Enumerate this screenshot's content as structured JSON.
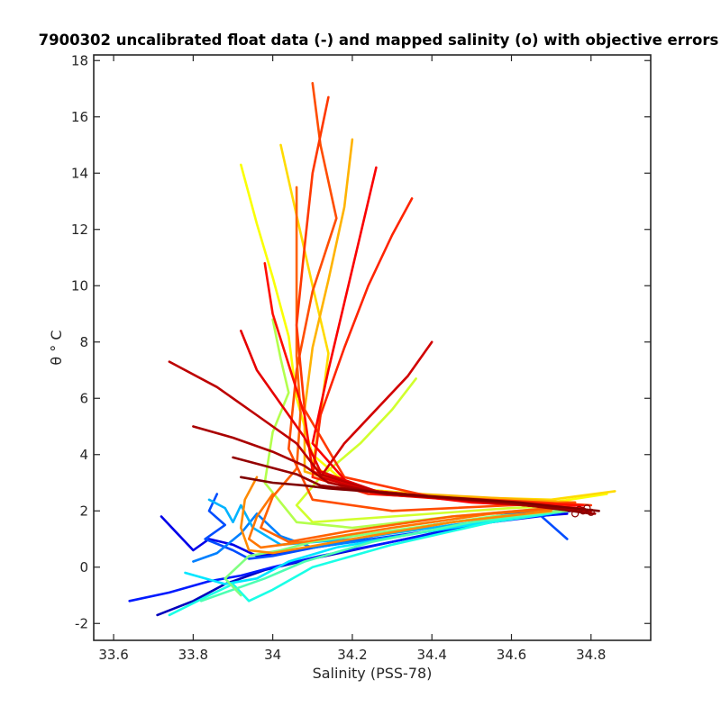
{
  "chart_data": {
    "type": "line",
    "title": "7900302 uncalibrated float data (-) and mapped salinity (o) with objective errors",
    "xlabel": "Salinity (PSS-78)",
    "ylabel": "θ ° C",
    "xlim": [
      33.55,
      34.95
    ],
    "ylim": [
      -2.6,
      18.2
    ],
    "xticks": [
      33.6,
      33.8,
      34,
      34.2,
      34.4,
      34.6,
      34.8
    ],
    "yticks": [
      -2,
      0,
      2,
      4,
      6,
      8,
      10,
      12,
      14,
      16,
      18
    ],
    "grid": false,
    "legend": "none",
    "colormap": "jet",
    "colors": [
      "#00008f",
      "#0000ff",
      "#0080ff",
      "#00ffff",
      "#80ff80",
      "#ffff00",
      "#ff8000",
      "#ff0000",
      "#800000"
    ],
    "series": [
      {
        "color_index": 0.05,
        "x": [
          33.71,
          33.8,
          33.88,
          33.98,
          34.1,
          34.3,
          34.5,
          34.68,
          34.75
        ],
        "y": [
          -1.7,
          -1.2,
          -0.6,
          -0.1,
          0.3,
          0.9,
          1.5,
          1.9,
          2.0
        ]
      },
      {
        "color_index": 0.1,
        "x": [
          33.72,
          33.76,
          33.8,
          33.84,
          33.9,
          33.96,
          34.06,
          34.2,
          34.45,
          34.65,
          34.74
        ],
        "y": [
          1.8,
          1.2,
          0.6,
          1.0,
          0.8,
          0.4,
          0.6,
          0.9,
          1.4,
          1.8,
          1.9
        ]
      },
      {
        "color_index": 0.15,
        "x": [
          33.64,
          33.74,
          33.84,
          33.92,
          34.0,
          34.12,
          34.3,
          34.55,
          34.72
        ],
        "y": [
          -1.2,
          -0.9,
          -0.5,
          -0.3,
          0.0,
          0.4,
          0.9,
          1.6,
          1.9
        ]
      },
      {
        "color_index": 0.2,
        "x": [
          33.86,
          33.84,
          33.88,
          33.83,
          33.9,
          33.94,
          34.0,
          34.14,
          34.4,
          34.66,
          34.74
        ],
        "y": [
          2.6,
          2.0,
          1.5,
          1.0,
          0.6,
          0.3,
          0.4,
          0.8,
          1.5,
          2.0,
          1.0
        ]
      },
      {
        "color_index": 0.25,
        "x": [
          33.8,
          33.86,
          33.92,
          33.96,
          34.02,
          34.1,
          34.26,
          34.5,
          34.7
        ],
        "y": [
          0.2,
          0.5,
          1.2,
          1.9,
          1.1,
          0.7,
          1.0,
          1.5,
          1.9
        ]
      },
      {
        "color_index": 0.3,
        "x": [
          33.84,
          33.88,
          33.9,
          33.92,
          33.95,
          34.02,
          34.2,
          34.45,
          34.68,
          34.74
        ],
        "y": [
          2.4,
          2.1,
          1.6,
          2.2,
          1.4,
          0.8,
          1.0,
          1.5,
          1.9,
          2.0
        ]
      },
      {
        "color_index": 0.35,
        "x": [
          33.78,
          33.88,
          33.96,
          34.04,
          34.16,
          34.36,
          34.58,
          34.74
        ],
        "y": [
          -0.2,
          -0.6,
          -0.4,
          0.2,
          0.7,
          1.2,
          1.7,
          2.0
        ]
      },
      {
        "color_index": 0.4,
        "x": [
          33.74,
          33.84,
          33.9,
          33.94,
          34.0,
          34.1,
          34.3,
          34.55,
          34.74
        ],
        "y": [
          -1.7,
          -1.0,
          -0.6,
          -1.2,
          -0.8,
          0.0,
          0.8,
          1.6,
          2.0
        ]
      },
      {
        "color_index": 0.45,
        "x": [
          33.82,
          33.9,
          33.98,
          34.08,
          34.25,
          34.5,
          34.72
        ],
        "y": [
          -1.2,
          -0.8,
          -0.4,
          0.2,
          0.9,
          1.6,
          2.0
        ]
      },
      {
        "color_index": 0.5,
        "x": [
          33.92,
          33.88,
          33.94,
          34.02,
          34.1,
          34.3,
          34.55,
          34.74
        ],
        "y": [
          -1.0,
          -0.4,
          0.4,
          0.6,
          0.9,
          1.3,
          1.8,
          2.0
        ]
      },
      {
        "color_index": 0.55,
        "x": [
          34.0,
          34.02,
          34.04,
          34.0,
          33.98,
          34.06,
          34.2,
          34.45,
          34.7
        ],
        "y": [
          8.8,
          7.4,
          6.2,
          4.8,
          3.0,
          1.6,
          1.4,
          1.8,
          2.1
        ]
      },
      {
        "color_index": 0.58,
        "x": [
          34.36,
          34.3,
          34.22,
          34.12,
          34.06,
          34.1,
          34.3,
          34.6,
          34.75
        ],
        "y": [
          6.7,
          5.6,
          4.4,
          3.2,
          2.2,
          1.6,
          1.8,
          2.1,
          2.2
        ]
      },
      {
        "color_index": 0.62,
        "x": [
          33.92,
          33.96,
          34.0,
          34.04,
          34.06,
          34.1,
          34.2,
          34.45,
          34.7,
          34.84
        ],
        "y": [
          14.3,
          12.2,
          10.3,
          8.2,
          6.0,
          4.0,
          2.8,
          2.4,
          2.3,
          2.6
        ]
      },
      {
        "color_index": 0.66,
        "x": [
          34.02,
          34.06,
          34.1,
          34.14,
          34.12,
          34.1,
          34.2,
          34.45,
          34.7,
          34.86
        ],
        "y": [
          15.0,
          12.5,
          10.0,
          7.6,
          5.4,
          3.6,
          2.8,
          2.5,
          2.4,
          2.7
        ]
      },
      {
        "color_index": 0.7,
        "x": [
          34.2,
          34.18,
          34.14,
          34.1,
          34.08,
          34.08,
          34.24,
          34.5,
          34.76
        ],
        "y": [
          15.2,
          12.8,
          10.2,
          7.8,
          5.6,
          3.4,
          2.7,
          2.5,
          2.3
        ]
      },
      {
        "color_index": 0.74,
        "x": [
          33.96,
          33.93,
          33.92,
          33.94,
          34.0,
          34.2,
          34.45,
          34.7
        ],
        "y": [
          3.2,
          2.4,
          1.4,
          0.6,
          0.5,
          1.0,
          1.6,
          2.0
        ]
      },
      {
        "color_index": 0.76,
        "x": [
          34.0,
          33.96,
          33.94,
          33.97,
          34.08,
          34.3,
          34.55,
          34.74
        ],
        "y": [
          2.6,
          1.8,
          1.0,
          0.7,
          0.9,
          1.4,
          1.9,
          2.1
        ]
      },
      {
        "color_index": 0.78,
        "x": [
          34.06,
          34.06,
          34.06,
          34.06,
          34.07,
          34.06,
          34.0,
          33.97,
          34.04,
          34.2,
          34.45,
          34.7
        ],
        "y": [
          13.5,
          11.5,
          9.5,
          7.5,
          5.5,
          3.5,
          2.5,
          1.4,
          0.9,
          1.3,
          1.8,
          2.1
        ]
      },
      {
        "color_index": 0.8,
        "x": [
          34.1,
          34.12,
          34.16,
          34.1,
          34.06,
          34.04,
          34.1,
          34.3,
          34.6,
          34.76
        ],
        "y": [
          17.2,
          15.0,
          12.4,
          9.8,
          7.0,
          4.2,
          2.4,
          2.0,
          2.2,
          2.3
        ]
      },
      {
        "color_index": 0.82,
        "x": [
          34.14,
          34.1,
          34.08,
          34.06,
          34.08,
          34.18,
          34.4,
          34.68,
          34.8
        ],
        "y": [
          16.7,
          14.0,
          11.4,
          8.6,
          5.6,
          3.2,
          2.5,
          2.3,
          2.2
        ]
      },
      {
        "color_index": 0.84,
        "x": [
          34.35,
          34.3,
          34.24,
          34.18,
          34.12,
          34.1,
          34.24,
          34.5,
          34.76
        ],
        "y": [
          13.1,
          11.8,
          10.0,
          7.8,
          5.4,
          3.2,
          2.6,
          2.4,
          2.2
        ]
      },
      {
        "color_index": 0.86,
        "x": [
          33.98,
          34.0,
          34.04,
          34.08,
          34.1,
          34.26,
          34.55,
          34.78
        ],
        "y": [
          10.8,
          9.0,
          7.2,
          5.4,
          3.4,
          2.6,
          2.3,
          2.2
        ]
      },
      {
        "color_index": 0.88,
        "x": [
          34.26,
          34.22,
          34.18,
          34.14,
          34.1,
          34.2,
          34.5,
          34.78
        ],
        "y": [
          14.2,
          11.8,
          9.4,
          7.0,
          4.4,
          2.8,
          2.3,
          2.1
        ]
      },
      {
        "color_index": 0.9,
        "x": [
          33.92,
          33.96,
          34.02,
          34.08,
          34.12,
          34.26,
          34.55,
          34.8
        ],
        "y": [
          8.4,
          7.0,
          5.8,
          4.6,
          3.4,
          2.7,
          2.3,
          2.0
        ]
      },
      {
        "color_index": 0.92,
        "x": [
          34.4,
          34.34,
          34.26,
          34.18,
          34.12,
          34.24,
          34.55,
          34.8
        ],
        "y": [
          8.0,
          6.8,
          5.6,
          4.4,
          3.2,
          2.7,
          2.3,
          2.0
        ]
      },
      {
        "color_index": 0.94,
        "x": [
          33.74,
          33.86,
          33.96,
          34.06,
          34.12,
          34.26,
          34.55,
          34.8
        ],
        "y": [
          7.3,
          6.4,
          5.4,
          4.4,
          3.3,
          2.7,
          2.3,
          2.0
        ]
      },
      {
        "color_index": 0.96,
        "x": [
          33.8,
          33.9,
          34.0,
          34.08,
          34.14,
          34.28,
          34.58,
          34.81
        ],
        "y": [
          5.0,
          4.6,
          4.1,
          3.6,
          3.0,
          2.6,
          2.3,
          1.9
        ]
      },
      {
        "color_index": 0.98,
        "x": [
          33.9,
          33.98,
          34.06,
          34.12,
          34.3,
          34.6,
          34.8
        ],
        "y": [
          3.9,
          3.6,
          3.3,
          2.9,
          2.6,
          2.3,
          1.9
        ]
      },
      {
        "color_index": 1.0,
        "x": [
          33.92,
          34.0,
          34.08,
          34.14,
          34.32,
          34.62,
          34.82
        ],
        "y": [
          3.2,
          3.0,
          2.9,
          2.8,
          2.6,
          2.3,
          2.0
        ]
      }
    ],
    "mapped_points": {
      "x": [
        34.76,
        34.78,
        34.79,
        34.8,
        34.77
      ],
      "y": [
        1.9,
        2.0,
        2.1,
        1.95,
        2.05
      ]
    }
  }
}
